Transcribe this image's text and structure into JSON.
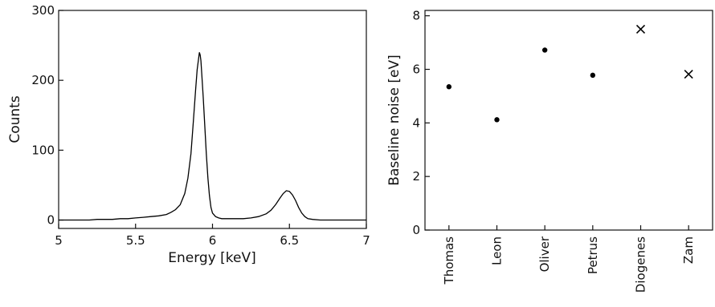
{
  "chart_data": [
    {
      "type": "line",
      "title": "",
      "xlabel": "Energy [keV]",
      "ylabel": "Counts",
      "xlim": [
        5,
        7
      ],
      "ylim": [
        -12,
        300
      ],
      "xticks": [
        5,
        5.5,
        6,
        6.5,
        7
      ],
      "xtick_labels": [
        "5",
        "5.5",
        "6",
        "6.5",
        "7"
      ],
      "yticks": [
        0,
        100,
        200,
        300
      ],
      "ytick_labels": [
        "0",
        "100",
        "200",
        "300"
      ],
      "grid": false,
      "legend": "none",
      "series": [
        {
          "x": [
            5.0,
            5.05,
            5.1,
            5.15,
            5.2,
            5.25,
            5.3,
            5.35,
            5.4,
            5.45,
            5.5,
            5.55,
            5.6,
            5.65,
            5.7,
            5.73,
            5.76,
            5.79,
            5.82,
            5.84,
            5.86,
            5.875,
            5.89,
            5.9,
            5.91,
            5.915,
            5.92,
            5.925,
            5.93,
            5.94,
            5.95,
            5.96,
            5.97,
            5.98,
            5.99,
            6.0,
            6.02,
            6.04,
            6.06,
            6.1,
            6.15,
            6.2,
            6.25,
            6.3,
            6.35,
            6.38,
            6.41,
            6.44,
            6.46,
            6.48,
            6.5,
            6.52,
            6.54,
            6.56,
            6.58,
            6.6,
            6.62,
            6.65,
            6.7,
            6.8,
            6.9,
            7.0
          ],
          "y": [
            0,
            0,
            0,
            0,
            0,
            1,
            1,
            1,
            2,
            2,
            3,
            4,
            5,
            6,
            8,
            11,
            15,
            22,
            38,
            60,
            95,
            140,
            185,
            215,
            232,
            240,
            236,
            228,
            210,
            175,
            135,
            95,
            60,
            35,
            18,
            10,
            5,
            3,
            2,
            2,
            2,
            2,
            3,
            5,
            9,
            14,
            22,
            32,
            38,
            42,
            41,
            36,
            28,
            18,
            10,
            5,
            2,
            1,
            0,
            0,
            0,
            0
          ]
        }
      ]
    },
    {
      "type": "scatter",
      "title": "",
      "xlabel": "",
      "ylabel": "Baseline noise [eV]",
      "categories": [
        "Thomas",
        "Leon",
        "Oliver",
        "Petrus",
        "Diogenes",
        "Zam"
      ],
      "ylim": [
        0,
        8.2
      ],
      "yticks": [
        0,
        2,
        4,
        6,
        8
      ],
      "ytick_labels": [
        "0",
        "2",
        "4",
        "6",
        "8"
      ],
      "grid": false,
      "legend": "none",
      "series": [
        {
          "marker": "dot",
          "values": [
            5.35,
            4.12,
            6.72,
            5.78,
            null,
            null
          ]
        },
        {
          "marker": "cross",
          "values": [
            null,
            null,
            null,
            null,
            7.5,
            5.82
          ]
        }
      ]
    }
  ]
}
